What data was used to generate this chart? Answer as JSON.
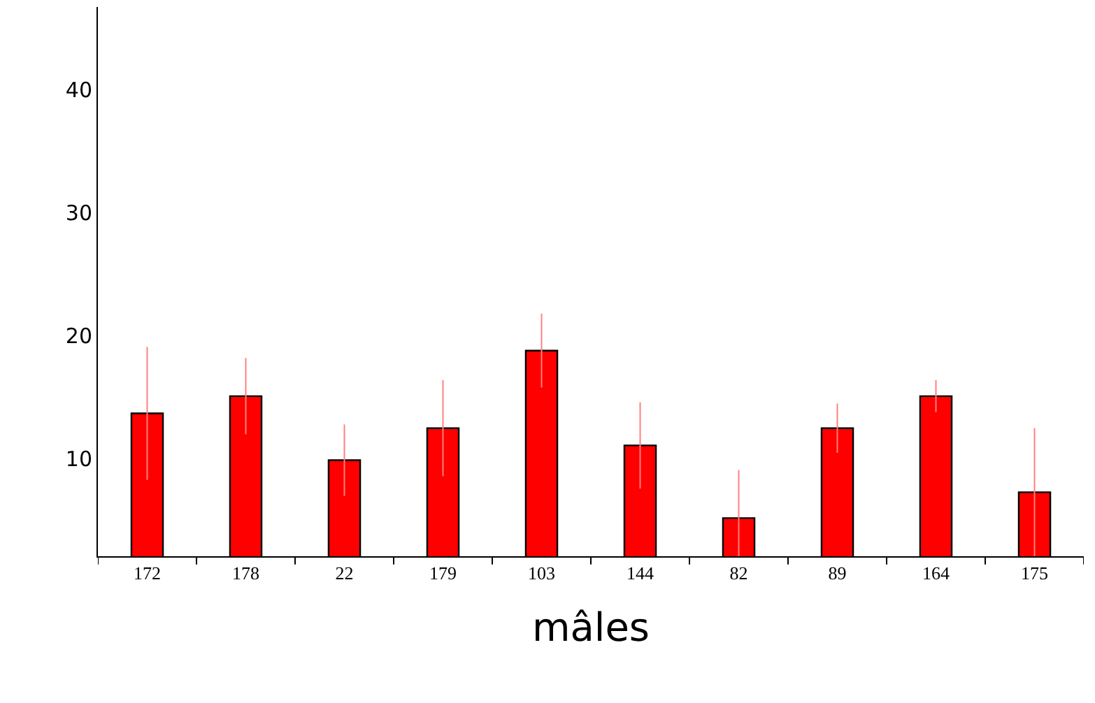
{
  "chart_data": {
    "type": "bar",
    "xlabel": "mâles",
    "categories": [
      "172",
      "178",
      "22",
      "179",
      "103",
      "144",
      "82",
      "89",
      "164",
      "175"
    ],
    "values": [
      13.7,
      15.1,
      9.9,
      12.5,
      18.8,
      11.1,
      5.2,
      12.5,
      15.1,
      7.3
    ],
    "errors": [
      5.4,
      3.1,
      2.9,
      3.9,
      3.0,
      3.5,
      3.9,
      2.0,
      1.3,
      5.2
    ],
    "color": "#ff0000",
    "ylim": [
      2.1,
      46.7
    ],
    "yticks": [
      10,
      20,
      30,
      40
    ]
  }
}
